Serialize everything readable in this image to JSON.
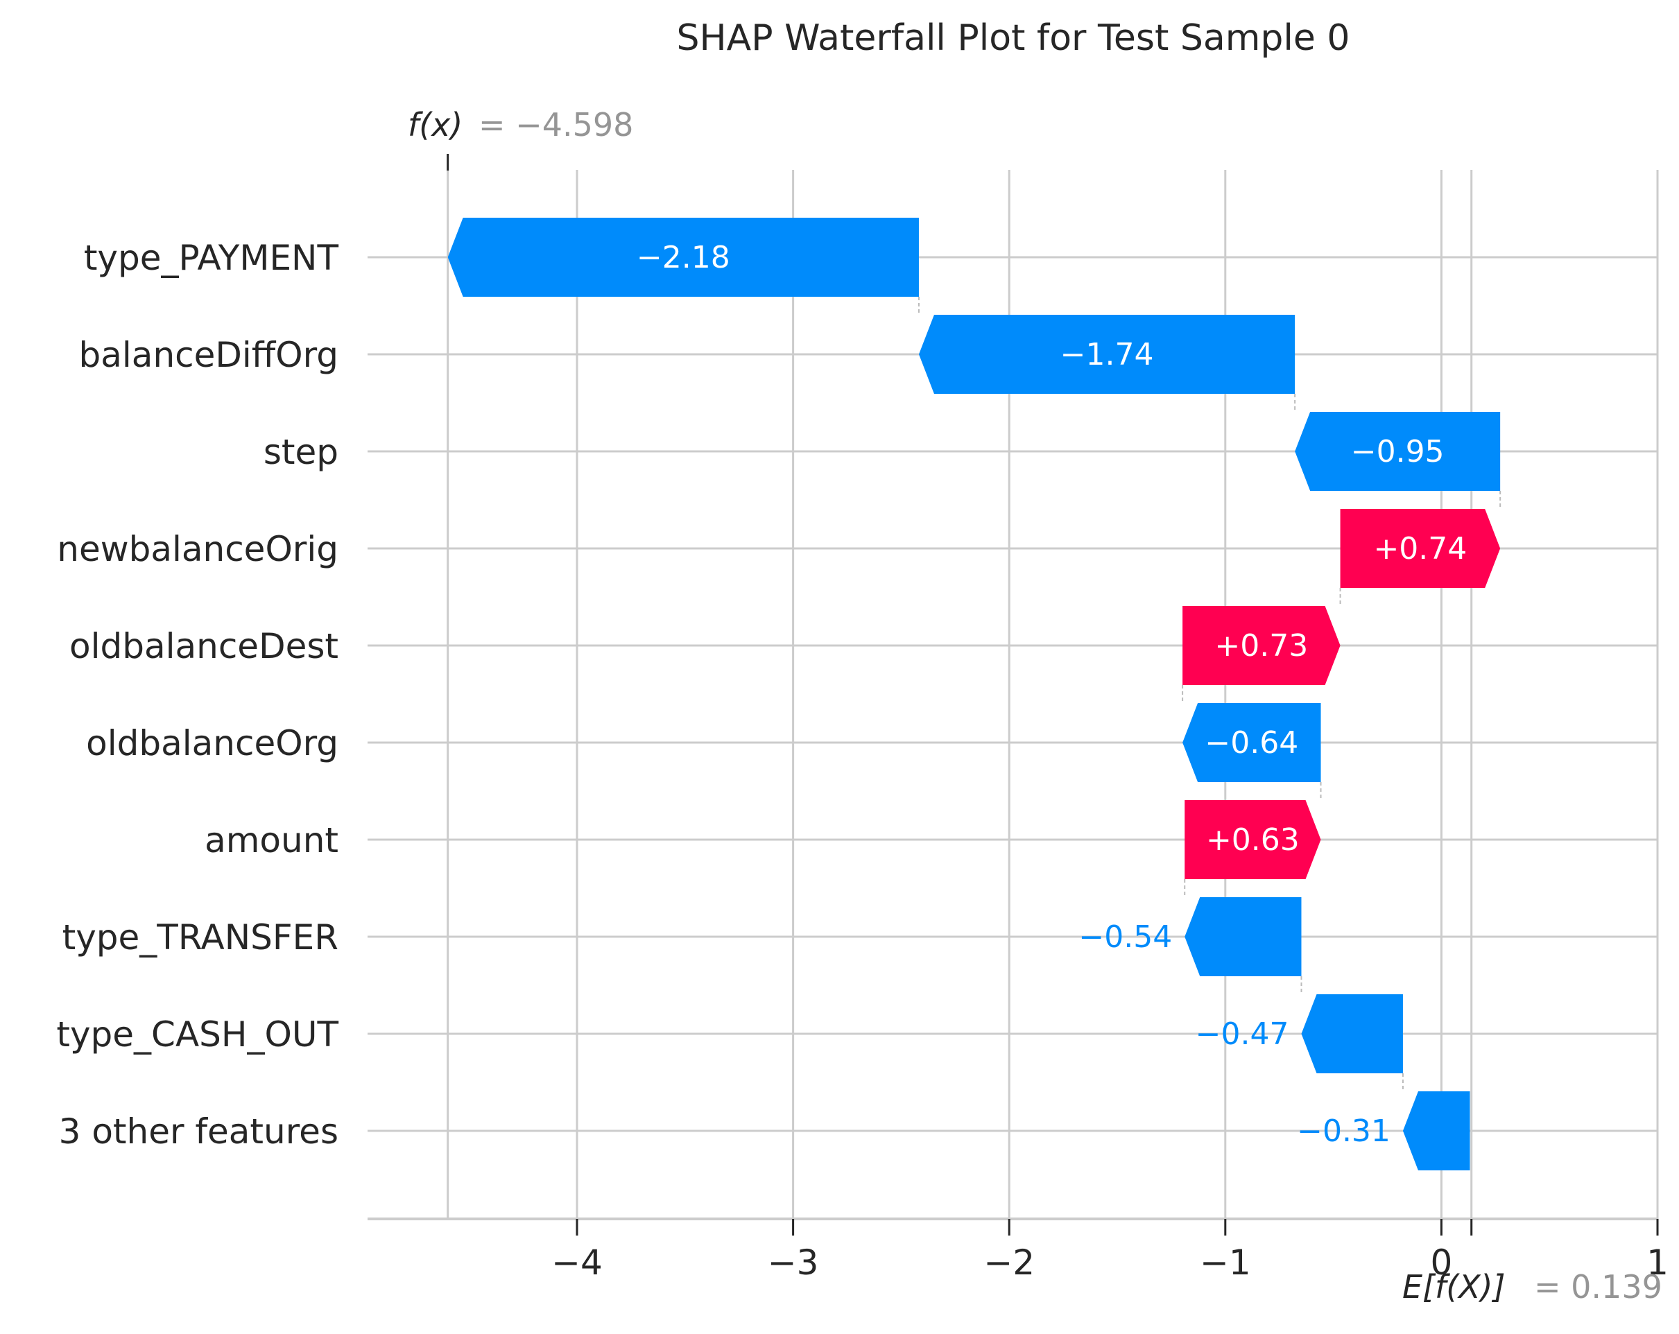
{
  "chart_data": {
    "type": "bar",
    "title": "SHAP Waterfall Plot for Test Sample 0",
    "base_value": 0.139,
    "output_value": -4.598,
    "base_label": {
      "prefix": "E[f(X)]",
      "value_text": "= 0.139"
    },
    "output_label": {
      "prefix": "f(x)",
      "value_text": "= −4.598"
    },
    "features": [
      {
        "name": "type_PAYMENT",
        "value": -2.18,
        "label": "−2.18"
      },
      {
        "name": "balanceDiffOrg",
        "value": -1.74,
        "label": "−1.74"
      },
      {
        "name": "step",
        "value": -0.95,
        "label": "−0.95"
      },
      {
        "name": "newbalanceOrig",
        "value": 0.74,
        "label": "+0.74"
      },
      {
        "name": "oldbalanceDest",
        "value": 0.73,
        "label": "+0.73"
      },
      {
        "name": "oldbalanceOrg",
        "value": -0.64,
        "label": "−0.64"
      },
      {
        "name": "amount",
        "value": 0.63,
        "label": "+0.63"
      },
      {
        "name": "type_TRANSFER",
        "value": -0.54,
        "label": "−0.54"
      },
      {
        "name": "type_CASH_OUT",
        "value": -0.47,
        "label": "−0.47"
      },
      {
        "name": "3 other features",
        "value": -0.31,
        "label": "−0.31"
      }
    ],
    "x_ticks": [
      -4,
      -3,
      -2,
      -1,
      0,
      1
    ],
    "x_tick_labels": [
      "−4",
      "−3",
      "−2",
      "−1",
      "0",
      "1"
    ],
    "xlim": [
      -4.92,
      1.07
    ],
    "grid": true,
    "colors": {
      "positive": "#ff0051",
      "negative": "#008bfb",
      "grid": "#cccccc",
      "text": "#262626",
      "muted": "#959595"
    }
  }
}
